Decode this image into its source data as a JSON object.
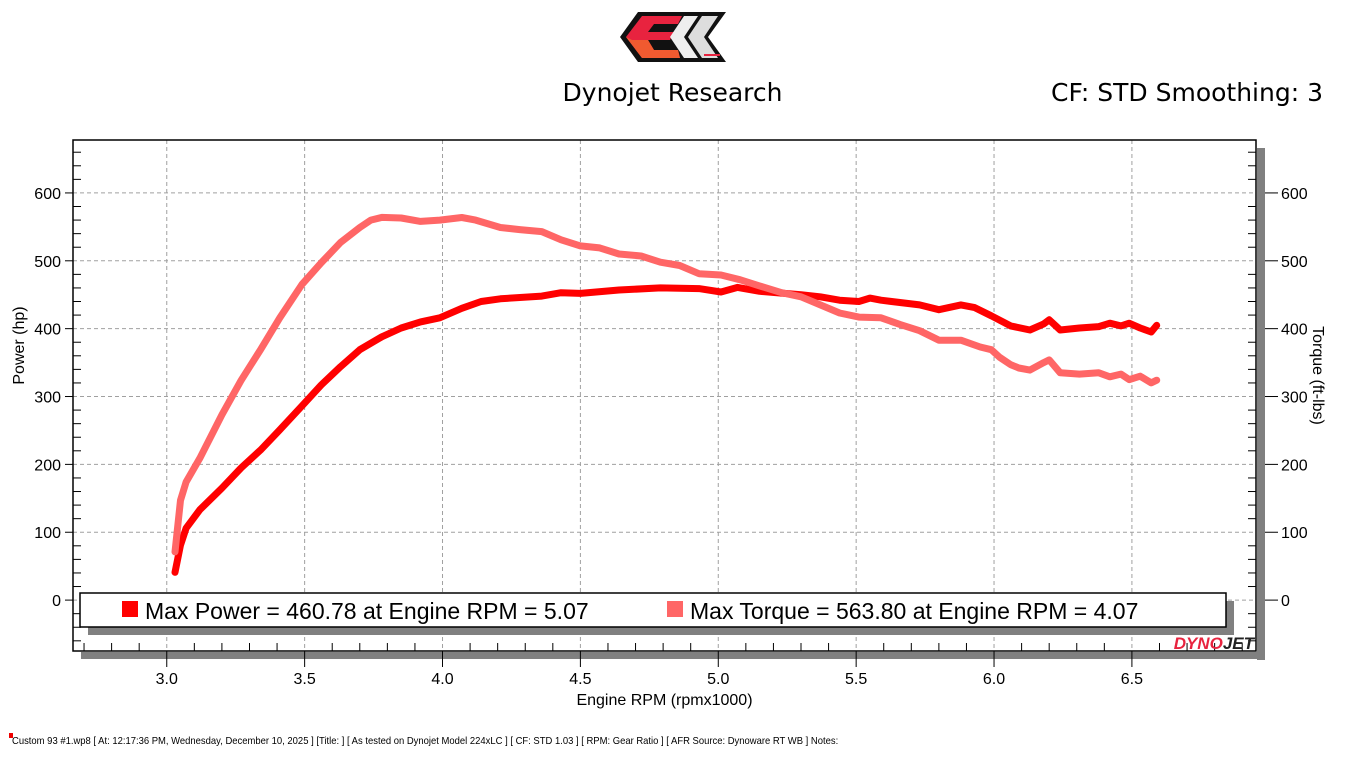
{
  "header": {
    "title": "Dynojet Research",
    "settings": "CF: STD Smoothing: 3",
    "brand": "Dynojet"
  },
  "footer": "Custom 93 #1.wp8 [ At: 12:17:36 PM, Wednesday, December 10, 2025 ] [Title: ]  [ As tested on Dynojet Model 224xLC ] [ CF: STD 1.03 ] [ RPM: Gear Ratio  ] [ AFR Source: Dynoware RT WB ] Notes:",
  "watermark": "DYNOJET",
  "chart_data": {
    "type": "line",
    "xlabel": "Engine RPM (rpmx1000)",
    "ylabel": "Power (hp)",
    "y2label": "Torque (ft-lbs)",
    "xlim": [
      2.66,
      6.95
    ],
    "ylim": [
      -75,
      678
    ],
    "xticks": [
      "3.0",
      "3.5",
      "4.0",
      "4.5",
      "5.0",
      "5.5",
      "6.0",
      "6.5"
    ],
    "yticks": [
      "0",
      "100",
      "200",
      "300",
      "400",
      "500",
      "600"
    ],
    "y2ticks": [
      "0",
      "100",
      "200",
      "300",
      "400",
      "500",
      "600"
    ],
    "grid": true,
    "legend_position": "bottom",
    "legend": [
      {
        "text": "Max Power = 460.78 at Engine RPM = 5.07",
        "color": "#ff0000"
      },
      {
        "text": "Max Torque = 563.80 at Engine RPM = 4.07",
        "color": "#ff6666"
      }
    ],
    "series": [
      {
        "name": "Power",
        "color": "#ff0000",
        "x": [
          3.03,
          3.05,
          3.07,
          3.12,
          3.2,
          3.27,
          3.34,
          3.41,
          3.49,
          3.56,
          3.63,
          3.7,
          3.78,
          3.85,
          3.92,
          3.99,
          4.07,
          4.14,
          4.21,
          4.36,
          4.43,
          4.5,
          4.64,
          4.79,
          4.93,
          5.01,
          5.07,
          5.15,
          5.3,
          5.37,
          5.44,
          5.51,
          5.55,
          5.59,
          5.73,
          5.8,
          5.88,
          5.93,
          5.99,
          6.06,
          6.13,
          6.18,
          6.2,
          6.24,
          6.31,
          6.38,
          6.42,
          6.46,
          6.49,
          6.53,
          6.57,
          6.59
        ],
        "y": [
          41,
          81,
          106,
          133,
          165,
          195,
          221,
          251,
          286,
          317,
          344,
          369,
          388,
          401,
          410,
          416,
          430,
          440,
          444,
          448,
          453,
          452,
          457,
          460,
          459,
          454,
          460.78,
          455,
          450,
          447,
          442,
          440,
          445,
          442,
          435,
          428,
          435,
          431,
          419,
          404,
          398,
          407,
          413,
          398,
          401,
          403,
          408,
          404,
          408,
          401,
          395,
          405
        ]
      },
      {
        "name": "Torque",
        "color": "#ff6666",
        "x": [
          3.03,
          3.05,
          3.07,
          3.12,
          3.2,
          3.27,
          3.34,
          3.41,
          3.49,
          3.56,
          3.63,
          3.7,
          3.74,
          3.78,
          3.85,
          3.92,
          3.99,
          4.07,
          4.12,
          4.21,
          4.28,
          4.36,
          4.43,
          4.5,
          4.57,
          4.64,
          4.72,
          4.79,
          4.86,
          4.93,
          5.01,
          5.08,
          5.15,
          5.23,
          5.3,
          5.37,
          5.44,
          5.51,
          5.59,
          5.66,
          5.73,
          5.8,
          5.88,
          5.95,
          5.99,
          6.02,
          6.06,
          6.09,
          6.13,
          6.18,
          6.2,
          6.24,
          6.31,
          6.38,
          6.42,
          6.46,
          6.49,
          6.53,
          6.57,
          6.59
        ],
        "y": [
          71,
          147,
          174,
          209,
          273,
          324,
          369,
          416,
          465,
          497,
          527,
          549,
          560,
          564,
          563,
          558,
          560,
          563.8,
          560,
          549,
          546,
          543,
          531,
          522,
          519,
          510,
          507,
          498,
          493,
          481,
          479,
          472,
          463,
          453,
          447,
          435,
          423,
          417,
          416,
          406,
          397,
          383,
          383,
          373,
          369,
          358,
          347,
          342,
          339,
          350,
          354,
          335,
          333,
          335,
          329,
          333,
          325,
          330,
          320,
          324
        ]
      }
    ]
  }
}
